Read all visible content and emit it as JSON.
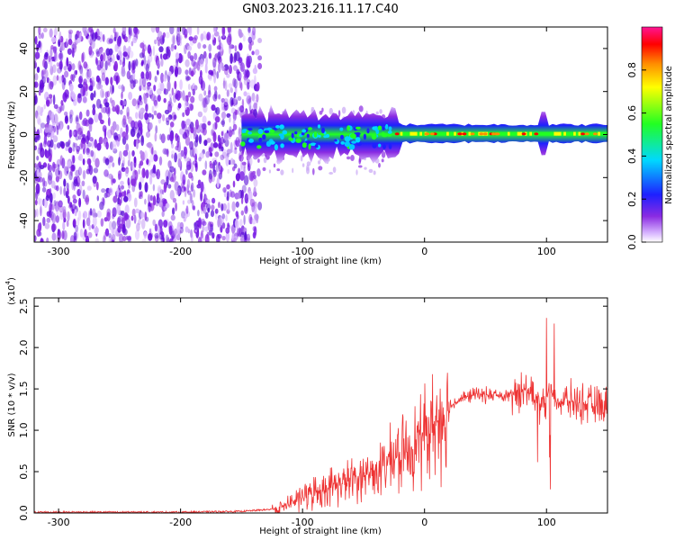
{
  "title": "GN03.2023.216.11.17.C40",
  "colorbar": {
    "label": "Normalized spectral amplitude",
    "ticks": [
      "0.0",
      "0.2",
      "0.4",
      "0.6",
      "0.8"
    ],
    "colors": [
      "#ffffff",
      "#d9b8ff",
      "#8a2be2",
      "#1e20ff",
      "#00d8ff",
      "#22ff22",
      "#ffff00",
      "#ff8c00",
      "#ff0000",
      "#ff1493"
    ]
  },
  "chart_data": [
    {
      "type": "heatmap",
      "xlabel": "Height of straight line (km)",
      "ylabel": "Frequency (Hz)",
      "xlim": [
        -320,
        150
      ],
      "ylim": [
        -50,
        50
      ],
      "x_ticks": [
        "-300",
        "-200",
        "-100",
        "0",
        "100"
      ],
      "y_ticks": [
        "-40",
        "-20",
        "0",
        "20",
        "40"
      ],
      "z_range": [
        0.0,
        1.0
      ],
      "description_regions": [
        {
          "x_range": [
            -320,
            -135
          ],
          "freq_range": [
            -50,
            50
          ],
          "level": 0.15
        },
        {
          "x_range": [
            -150,
            -20
          ],
          "freq_range": [
            -8,
            8
          ],
          "level": 0.5
        },
        {
          "x_range": [
            -20,
            150
          ],
          "freq_range": [
            -3,
            3
          ],
          "level": 0.85
        }
      ]
    },
    {
      "type": "line",
      "xlabel": "Height of straight line (km)",
      "ylabel": "SNR (10 * v/v)",
      "y_exponent": "(x10",
      "y_exponent_power": "4",
      "y_exponent_close": ")",
      "xlim": [
        -320,
        150
      ],
      "ylim": [
        0,
        2.6
      ],
      "x_ticks": [
        "-300",
        "-200",
        "-100",
        "0",
        "100"
      ],
      "y_ticks": [
        "0.0",
        "0.5",
        "1.0",
        "1.5",
        "2.0",
        "2.5"
      ],
      "color": "#ee3333",
      "series": [
        {
          "x": [
            -320,
            -200,
            -150,
            -120,
            -110,
            -100,
            -90,
            -80,
            -70,
            -60,
            -50,
            -40,
            -30,
            -20,
            -10,
            0,
            10,
            20,
            30,
            40,
            50,
            60,
            70,
            75,
            80,
            90,
            95,
            100,
            103,
            105,
            110,
            120,
            130,
            140,
            150
          ],
          "y": [
            0.01,
            0.01,
            0.02,
            0.05,
            0.12,
            0.2,
            0.25,
            0.3,
            0.35,
            0.4,
            0.45,
            0.5,
            0.6,
            0.7,
            0.8,
            0.95,
            1.1,
            1.28,
            1.38,
            1.43,
            1.43,
            1.42,
            1.4,
            1.45,
            1.5,
            1.45,
            1.4,
            1.35,
            1.6,
            1.4,
            1.35,
            1.35,
            1.32,
            1.3,
            1.3
          ]
        }
      ]
    }
  ]
}
